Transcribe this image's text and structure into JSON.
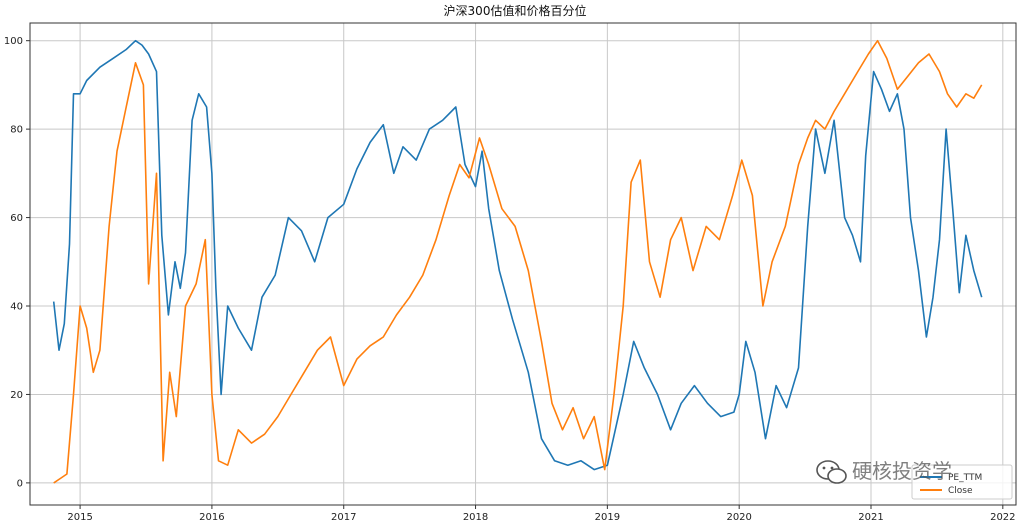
{
  "chart_data": {
    "type": "line",
    "title": "沪深300估值和价格百分位",
    "xlabel": "",
    "ylabel": "",
    "xlim": [
      2014.62,
      2022.1
    ],
    "ylim": [
      -5,
      104
    ],
    "grid": true,
    "x_ticks": [
      2015,
      2016,
      2017,
      2018,
      2019,
      2020,
      2021,
      2022
    ],
    "x_tick_labels": [
      "2015",
      "2016",
      "2017",
      "2018",
      "2019",
      "2020",
      "2021",
      "2022"
    ],
    "y_ticks": [
      0,
      20,
      40,
      60,
      80,
      100
    ],
    "y_tick_labels": [
      "0",
      "20",
      "40",
      "60",
      "80",
      "100"
    ],
    "legend": {
      "placement": "bottom-right"
    },
    "series": [
      {
        "name": "PE_TTM",
        "color": "#1f77b4",
        "points": [
          [
            2014.8,
            41
          ],
          [
            2014.84,
            30
          ],
          [
            2014.88,
            36
          ],
          [
            2014.92,
            54
          ],
          [
            2014.95,
            88
          ],
          [
            2015.0,
            88
          ],
          [
            2015.05,
            91
          ],
          [
            2015.15,
            94
          ],
          [
            2015.25,
            96
          ],
          [
            2015.35,
            98
          ],
          [
            2015.42,
            100
          ],
          [
            2015.47,
            99
          ],
          [
            2015.52,
            97
          ],
          [
            2015.58,
            93
          ],
          [
            2015.62,
            56
          ],
          [
            2015.67,
            38
          ],
          [
            2015.72,
            50
          ],
          [
            2015.76,
            44
          ],
          [
            2015.8,
            52
          ],
          [
            2015.85,
            82
          ],
          [
            2015.9,
            88
          ],
          [
            2015.96,
            85
          ],
          [
            2016.0,
            70
          ],
          [
            2016.03,
            44
          ],
          [
            2016.07,
            20
          ],
          [
            2016.12,
            40
          ],
          [
            2016.2,
            35
          ],
          [
            2016.3,
            30
          ],
          [
            2016.38,
            42
          ],
          [
            2016.48,
            47
          ],
          [
            2016.58,
            60
          ],
          [
            2016.68,
            57
          ],
          [
            2016.78,
            50
          ],
          [
            2016.88,
            60
          ],
          [
            2017.0,
            63
          ],
          [
            2017.1,
            71
          ],
          [
            2017.2,
            77
          ],
          [
            2017.3,
            81
          ],
          [
            2017.38,
            70
          ],
          [
            2017.45,
            76
          ],
          [
            2017.55,
            73
          ],
          [
            2017.65,
            80
          ],
          [
            2017.75,
            82
          ],
          [
            2017.85,
            85
          ],
          [
            2017.92,
            72
          ],
          [
            2018.0,
            67
          ],
          [
            2018.05,
            75
          ],
          [
            2018.1,
            62
          ],
          [
            2018.18,
            48
          ],
          [
            2018.28,
            37
          ],
          [
            2018.4,
            25
          ],
          [
            2018.5,
            10
          ],
          [
            2018.6,
            5
          ],
          [
            2018.7,
            4
          ],
          [
            2018.8,
            5
          ],
          [
            2018.9,
            3
          ],
          [
            2019.0,
            4
          ],
          [
            2019.06,
            12
          ],
          [
            2019.12,
            20
          ],
          [
            2019.2,
            32
          ],
          [
            2019.28,
            26
          ],
          [
            2019.38,
            20
          ],
          [
            2019.48,
            12
          ],
          [
            2019.56,
            18
          ],
          [
            2019.66,
            22
          ],
          [
            2019.76,
            18
          ],
          [
            2019.86,
            15
          ],
          [
            2019.96,
            16
          ],
          [
            2020.0,
            20
          ],
          [
            2020.05,
            32
          ],
          [
            2020.12,
            25
          ],
          [
            2020.2,
            10
          ],
          [
            2020.28,
            22
          ],
          [
            2020.36,
            17
          ],
          [
            2020.45,
            26
          ],
          [
            2020.52,
            58
          ],
          [
            2020.58,
            80
          ],
          [
            2020.65,
            70
          ],
          [
            2020.72,
            82
          ],
          [
            2020.8,
            60
          ],
          [
            2020.86,
            56
          ],
          [
            2020.92,
            50
          ],
          [
            2020.96,
            74
          ],
          [
            2021.02,
            93
          ],
          [
            2021.08,
            89
          ],
          [
            2021.14,
            84
          ],
          [
            2021.2,
            88
          ],
          [
            2021.25,
            80
          ],
          [
            2021.3,
            60
          ],
          [
            2021.36,
            48
          ],
          [
            2021.42,
            33
          ],
          [
            2021.47,
            42
          ],
          [
            2021.52,
            55
          ],
          [
            2021.57,
            80
          ],
          [
            2021.62,
            62
          ],
          [
            2021.67,
            43
          ],
          [
            2021.72,
            56
          ],
          [
            2021.78,
            48
          ],
          [
            2021.84,
            42
          ]
        ]
      },
      {
        "name": "Close",
        "color": "#ff7f0e",
        "points": [
          [
            2014.8,
            0
          ],
          [
            2014.85,
            1
          ],
          [
            2014.9,
            2
          ],
          [
            2014.95,
            20
          ],
          [
            2015.0,
            40
          ],
          [
            2015.05,
            35
          ],
          [
            2015.1,
            25
          ],
          [
            2015.15,
            30
          ],
          [
            2015.22,
            58
          ],
          [
            2015.28,
            75
          ],
          [
            2015.35,
            85
          ],
          [
            2015.42,
            95
          ],
          [
            2015.48,
            90
          ],
          [
            2015.52,
            45
          ],
          [
            2015.58,
            70
          ],
          [
            2015.63,
            5
          ],
          [
            2015.68,
            25
          ],
          [
            2015.73,
            15
          ],
          [
            2015.8,
            40
          ],
          [
            2015.88,
            45
          ],
          [
            2015.95,
            55
          ],
          [
            2016.0,
            20
          ],
          [
            2016.05,
            5
          ],
          [
            2016.12,
            4
          ],
          [
            2016.2,
            12
          ],
          [
            2016.3,
            9
          ],
          [
            2016.4,
            11
          ],
          [
            2016.5,
            15
          ],
          [
            2016.6,
            20
          ],
          [
            2016.7,
            25
          ],
          [
            2016.8,
            30
          ],
          [
            2016.9,
            33
          ],
          [
            2017.0,
            22
          ],
          [
            2017.1,
            28
          ],
          [
            2017.2,
            31
          ],
          [
            2017.3,
            33
          ],
          [
            2017.4,
            38
          ],
          [
            2017.5,
            42
          ],
          [
            2017.6,
            47
          ],
          [
            2017.7,
            55
          ],
          [
            2017.8,
            65
          ],
          [
            2017.88,
            72
          ],
          [
            2017.95,
            69
          ],
          [
            2018.03,
            78
          ],
          [
            2018.1,
            72
          ],
          [
            2018.2,
            62
          ],
          [
            2018.3,
            58
          ],
          [
            2018.4,
            48
          ],
          [
            2018.5,
            32
          ],
          [
            2018.58,
            18
          ],
          [
            2018.66,
            12
          ],
          [
            2018.74,
            17
          ],
          [
            2018.82,
            10
          ],
          [
            2018.9,
            15
          ],
          [
            2018.98,
            3
          ],
          [
            2019.05,
            20
          ],
          [
            2019.12,
            40
          ],
          [
            2019.18,
            68
          ],
          [
            2019.25,
            73
          ],
          [
            2019.32,
            50
          ],
          [
            2019.4,
            42
          ],
          [
            2019.48,
            55
          ],
          [
            2019.56,
            60
          ],
          [
            2019.65,
            48
          ],
          [
            2019.75,
            58
          ],
          [
            2019.85,
            55
          ],
          [
            2019.95,
            65
          ],
          [
            2020.02,
            73
          ],
          [
            2020.1,
            65
          ],
          [
            2020.18,
            40
          ],
          [
            2020.25,
            50
          ],
          [
            2020.35,
            58
          ],
          [
            2020.45,
            72
          ],
          [
            2020.52,
            78
          ],
          [
            2020.58,
            82
          ],
          [
            2020.65,
            80
          ],
          [
            2020.72,
            84
          ],
          [
            2020.8,
            88
          ],
          [
            2020.9,
            93
          ],
          [
            2020.98,
            97
          ],
          [
            2021.05,
            100
          ],
          [
            2021.12,
            96
          ],
          [
            2021.2,
            89
          ],
          [
            2021.28,
            92
          ],
          [
            2021.36,
            95
          ],
          [
            2021.44,
            97
          ],
          [
            2021.52,
            93
          ],
          [
            2021.58,
            88
          ],
          [
            2021.65,
            85
          ],
          [
            2021.72,
            88
          ],
          [
            2021.78,
            87
          ],
          [
            2021.84,
            90
          ]
        ]
      }
    ]
  },
  "watermark": {
    "text": "硬核投资学",
    "icon": "wechat-icon"
  }
}
